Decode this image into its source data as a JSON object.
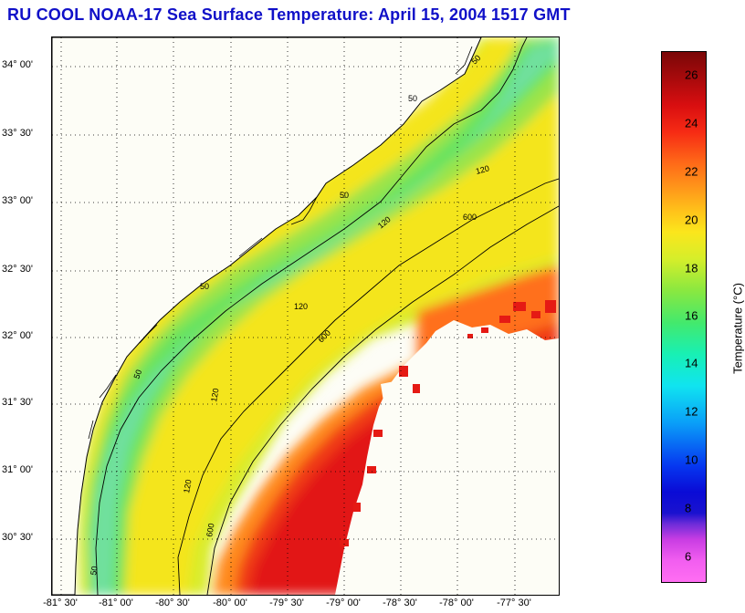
{
  "title": "RU COOL  NOAA-17  Sea Surface Temperature:  April 15, 2004 1517 GMT",
  "map": {
    "lat_labels": [
      "34° 00'",
      "33° 30'",
      "33° 00'",
      "32° 30'",
      "32° 00'",
      "31° 30'",
      "31° 00'",
      "30° 30'"
    ],
    "lon_labels": [
      "-81° 30'",
      "-81° 00'",
      "-80° 30'",
      "-80° 00'",
      "-79° 30'",
      "-79° 00'",
      "-78° 30'",
      "-78° 00'",
      "-77° 30'"
    ],
    "isobath_labels": [
      "50",
      "50",
      "50",
      "50",
      "50",
      "50",
      "120",
      "120",
      "120",
      "120",
      "120",
      "600",
      "600",
      "600"
    ],
    "colors": {
      "land": "#fdfdf6",
      "coast": "#000000",
      "grid": "#000000"
    }
  },
  "colorbar": {
    "ticks": [
      "26",
      "24",
      "22",
      "20",
      "18",
      "16",
      "14",
      "12",
      "10",
      "8",
      "6"
    ],
    "label": "Temperature (°C)",
    "range": [
      5,
      27
    ]
  }
}
